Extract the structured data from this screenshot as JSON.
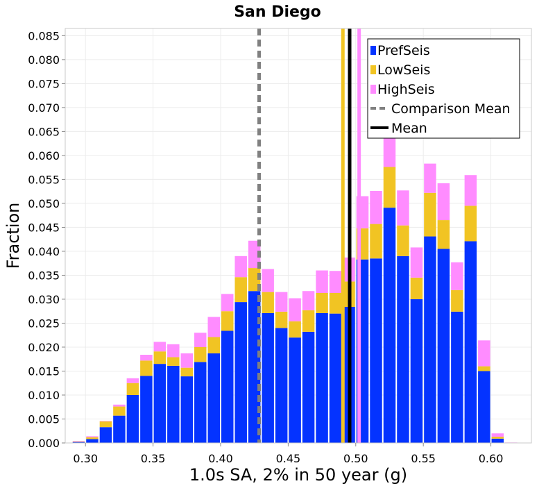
{
  "chart_data": {
    "type": "bar",
    "stacked": true,
    "title": "San Diego",
    "xlabel": "1.0s SA, 2% in 50 year (g)",
    "ylabel": "Fraction",
    "xlim": [
      0.285,
      0.63
    ],
    "ylim": [
      0.0,
      0.0865
    ],
    "xticks": [
      0.3,
      0.35,
      0.4,
      0.45,
      0.5,
      0.55,
      0.6
    ],
    "xtick_labels": [
      "0.30",
      "0.35",
      "0.40",
      "0.45",
      "0.50",
      "0.55",
      "0.60"
    ],
    "yticks": [
      0.0,
      0.005,
      0.01,
      0.015,
      0.02,
      0.025,
      0.03,
      0.035,
      0.04,
      0.045,
      0.05,
      0.055,
      0.06,
      0.065,
      0.07,
      0.075,
      0.08,
      0.085
    ],
    "ytick_labels": [
      "0.000",
      "0.005",
      "0.010",
      "0.015",
      "0.020",
      "0.025",
      "0.030",
      "0.035",
      "0.040",
      "0.045",
      "0.050",
      "0.055",
      "0.060",
      "0.065",
      "0.070",
      "0.075",
      "0.080",
      "0.085"
    ],
    "bin_width": 0.01,
    "bin_centers": [
      0.295,
      0.305,
      0.315,
      0.325,
      0.335,
      0.345,
      0.355,
      0.365,
      0.375,
      0.385,
      0.395,
      0.405,
      0.415,
      0.425,
      0.435,
      0.445,
      0.455,
      0.465,
      0.475,
      0.485,
      0.495,
      0.505,
      0.515,
      0.525,
      0.535,
      0.545,
      0.555,
      0.565,
      0.575,
      0.585,
      0.595,
      0.605,
      0.615
    ],
    "series": [
      {
        "name": "PrefSeis",
        "color": "#0433ff",
        "values": [
          0.0002,
          0.0008,
          0.0033,
          0.0057,
          0.01,
          0.014,
          0.0165,
          0.0161,
          0.0139,
          0.0169,
          0.0187,
          0.0234,
          0.0294,
          0.0317,
          0.0271,
          0.024,
          0.022,
          0.0232,
          0.0271,
          0.027,
          0.0284,
          0.0383,
          0.0385,
          0.0491,
          0.039,
          0.03,
          0.0431,
          0.0405,
          0.0274,
          0.0421,
          0.015,
          0.0009,
          0.0
        ]
      },
      {
        "name": "LowSeis",
        "color": "#f1c423",
        "values": [
          0.0001,
          0.0004,
          0.0012,
          0.0019,
          0.0025,
          0.0032,
          0.0026,
          0.0018,
          0.0018,
          0.0031,
          0.0034,
          0.0041,
          0.0052,
          0.0048,
          0.0044,
          0.0034,
          0.0034,
          0.0045,
          0.0042,
          0.0043,
          0.0053,
          0.0065,
          0.0072,
          0.0085,
          0.0064,
          0.0045,
          0.0091,
          0.006,
          0.0045,
          0.0074,
          0.001,
          0.0004,
          0.0
        ]
      },
      {
        "name": "HighSeis",
        "color": "#ff8cff",
        "values": [
          0.0001,
          0.0002,
          0.0001,
          0.0004,
          0.001,
          0.0012,
          0.002,
          0.0027,
          0.003,
          0.003,
          0.0042,
          0.0036,
          0.0044,
          0.0057,
          0.0048,
          0.0041,
          0.0048,
          0.004,
          0.0047,
          0.0046,
          0.005,
          0.0067,
          0.0069,
          0.0078,
          0.0073,
          0.0063,
          0.0061,
          0.0077,
          0.0058,
          0.0064,
          0.0054,
          0.0007,
          0.0001
        ]
      }
    ],
    "vertical_lines": [
      {
        "name": "Comparison Mean",
        "x": 0.4285,
        "color": "#808080",
        "dashed": true
      },
      {
        "name": "Mean",
        "x": 0.4955,
        "color": "#000000",
        "dashed": false
      },
      {
        "name": "LowSeis Mean",
        "x": 0.4905,
        "color": "#f1c423",
        "dashed": false
      },
      {
        "name": "HighSeis Mean",
        "x": 0.5025,
        "color": "#ff8cff",
        "dashed": false
      }
    ],
    "legend": {
      "position": "top-right",
      "entries": [
        {
          "label": "PrefSeis",
          "kind": "patch",
          "color": "#0433ff"
        },
        {
          "label": "LowSeis",
          "kind": "patch",
          "color": "#f1c423"
        },
        {
          "label": "HighSeis",
          "kind": "patch",
          "color": "#ff8cff"
        },
        {
          "label": "Comparison Mean",
          "kind": "dashed-line",
          "color": "#808080"
        },
        {
          "label": "Mean",
          "kind": "line",
          "color": "#000000"
        }
      ]
    },
    "grid": true
  }
}
